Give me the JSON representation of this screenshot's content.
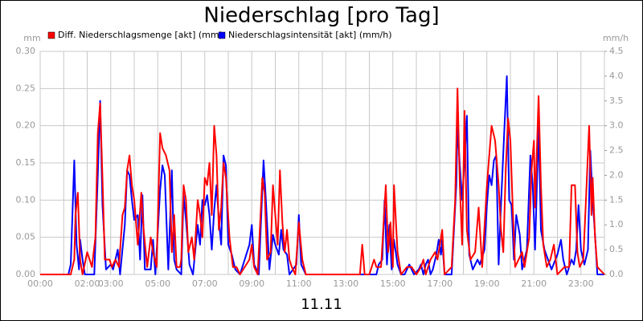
{
  "chart_data": {
    "type": "line",
    "title": "Niederschlag [pro Tag]",
    "x_label": "11.11",
    "y_label": "mm",
    "y2_label": "mm/h",
    "xlim": [
      0,
      24
    ],
    "xticks": [
      {
        "value": 0,
        "label": "00:00"
      },
      {
        "value": 1,
        "label": null
      },
      {
        "value": 2,
        "label": "02:00"
      },
      {
        "value": 3,
        "label": "03:00"
      },
      {
        "value": 4,
        "label": null
      },
      {
        "value": 5,
        "label": "05:00"
      },
      {
        "value": 6,
        "label": null
      },
      {
        "value": 7,
        "label": "07:00"
      },
      {
        "value": 8,
        "label": null
      },
      {
        "value": 9,
        "label": "09:00"
      },
      {
        "value": 10,
        "label": null
      },
      {
        "value": 11,
        "label": "11:00"
      },
      {
        "value": 12,
        "label": null
      },
      {
        "value": 13,
        "label": "13:00"
      },
      {
        "value": 14,
        "label": null
      },
      {
        "value": 15,
        "label": "15:00"
      },
      {
        "value": 16,
        "label": null
      },
      {
        "value": 17,
        "label": "17:00"
      },
      {
        "value": 18,
        "label": null
      },
      {
        "value": 19,
        "label": "19:00"
      },
      {
        "value": 20,
        "label": null
      },
      {
        "value": 21,
        "label": "21:00"
      },
      {
        "value": 22,
        "label": null
      },
      {
        "value": 23,
        "label": "23:00"
      },
      {
        "value": 24,
        "label": null
      }
    ],
    "ylim": [
      0,
      0.3
    ],
    "yticks": [
      {
        "value": 0,
        "label": "0.00"
      },
      {
        "value": 0.05,
        "label": "0.05"
      },
      {
        "value": 0.1,
        "label": "0.10"
      },
      {
        "value": 0.15,
        "label": "0.15"
      },
      {
        "value": 0.2,
        "label": "0.20"
      },
      {
        "value": 0.25,
        "label": "0.25"
      },
      {
        "value": 0.3,
        "label": "0.30"
      }
    ],
    "y2lim": [
      0,
      4.5
    ],
    "y2ticks": [
      {
        "value": 0,
        "label": "0.0"
      },
      0.5,
      {
        "value": 1,
        "label": "1.0"
      },
      1.5,
      {
        "value": 2,
        "label": "2.0"
      },
      2.5,
      {
        "value": 3,
        "label": "3.0"
      },
      3.5,
      {
        "value": 4,
        "label": "4.0"
      },
      4.5
    ],
    "grid": true,
    "legend": "top",
    "series": [
      {
        "name": "Diff. Niederschlagsmenge [akt] (mm)",
        "color": "#ff0000",
        "x": [
          0,
          1.3,
          1.45,
          1.5,
          1.6,
          1.7,
          1.8,
          2.0,
          2.2,
          2.35,
          2.45,
          2.55,
          2.65,
          2.75,
          2.95,
          3.05,
          3.2,
          3.35,
          3.5,
          3.6,
          3.7,
          3.8,
          3.9,
          4.0,
          4.15,
          4.3,
          4.4,
          4.55,
          4.7,
          4.8,
          4.95,
          5.1,
          5.2,
          5.35,
          5.5,
          5.6,
          5.7,
          5.8,
          5.95,
          6.0,
          6.1,
          6.2,
          6.3,
          6.45,
          6.55,
          6.7,
          6.8,
          6.9,
          7.0,
          7.1,
          7.2,
          7.3,
          7.4,
          7.5,
          7.6,
          7.7,
          7.8,
          7.9,
          8.05,
          8.2,
          8.35,
          8.5,
          8.9,
          9.0,
          9.1,
          9.25,
          9.45,
          9.55,
          9.65,
          9.8,
          9.9,
          10.0,
          10.1,
          10.2,
          10.3,
          10.4,
          10.5,
          10.6,
          10.7,
          10.85,
          11.0,
          11.15,
          11.3,
          13.6,
          13.7,
          13.8,
          14.0,
          14.2,
          14.3,
          14.5,
          14.7,
          14.8,
          14.9,
          15.0,
          15.05,
          15.2,
          15.35,
          15.6,
          15.8,
          16.0,
          16.2,
          16.3,
          16.4,
          16.6,
          16.8,
          16.9,
          17.0,
          17.1,
          17.2,
          17.5,
          17.65,
          17.75,
          17.85,
          17.95,
          18.05,
          18.15,
          18.3,
          18.5,
          18.65,
          18.8,
          19.0,
          19.2,
          19.35,
          19.5,
          19.6,
          19.7,
          19.8,
          19.9,
          20.0,
          20.1,
          20.2,
          20.35,
          20.5,
          20.6,
          20.8,
          20.9,
          21.0,
          21.05,
          21.2,
          21.3,
          21.4,
          21.55,
          21.7,
          21.85,
          22.0,
          22.3,
          22.5,
          22.6,
          22.75,
          22.85,
          22.95,
          23.1,
          23.2,
          23.35,
          23.45,
          23.5,
          23.6,
          23.7,
          24
        ],
        "values": [
          0,
          0,
          0.02,
          0.08,
          0.11,
          0.02,
          0,
          0.03,
          0.01,
          0.05,
          0.19,
          0.23,
          0.13,
          0.02,
          0.02,
          0.01,
          0.02,
          0.01,
          0.08,
          0.09,
          0.14,
          0.16,
          0.12,
          0.1,
          0.04,
          0.11,
          0.06,
          0.01,
          0.05,
          0.03,
          0.01,
          0.19,
          0.17,
          0.16,
          0.14,
          0.03,
          0.08,
          0.01,
          0.01,
          0.02,
          0.12,
          0.1,
          0.03,
          0.05,
          0.02,
          0.1,
          0.08,
          0.05,
          0.13,
          0.12,
          0.15,
          0.08,
          0.2,
          0.16,
          0.06,
          0.09,
          0.15,
          0.13,
          0.05,
          0.01,
          0.01,
          0,
          0.02,
          0.04,
          0.01,
          0,
          0.13,
          0.11,
          0.02,
          0.03,
          0.12,
          0.08,
          0.04,
          0.14,
          0.07,
          0.03,
          0.06,
          0.02,
          0.01,
          0,
          0.07,
          0.02,
          0,
          0,
          0.04,
          0,
          0,
          0.02,
          0.01,
          0.01,
          0.12,
          0.03,
          0.07,
          0.01,
          0.12,
          0.03,
          0,
          0.01,
          0.01,
          0,
          0.01,
          0.02,
          0,
          0.02,
          0.03,
          0.02,
          0.04,
          0.06,
          0,
          0.01,
          0.1,
          0.25,
          0.12,
          0.04,
          0.22,
          0.06,
          0.02,
          0.03,
          0.09,
          0.01,
          0.12,
          0.2,
          0.18,
          0.12,
          0.06,
          0.03,
          0.14,
          0.21,
          0.18,
          0.09,
          0.01,
          0.02,
          0.03,
          0.01,
          0.05,
          0.14,
          0.18,
          0.09,
          0.24,
          0.12,
          0.04,
          0.01,
          0.02,
          0.04,
          0,
          0.01,
          0.01,
          0.12,
          0.12,
          0.03,
          0.01,
          0.02,
          0.09,
          0.2,
          0.08,
          0.13,
          0.05,
          0.01,
          0
        ]
      },
      {
        "name": "Niederschlagsintensität [akt] (mm/h)",
        "color": "#0000ff",
        "axis": "y2",
        "x": [
          0,
          1.2,
          1.3,
          1.45,
          1.55,
          1.65,
          1.7,
          1.8,
          1.9,
          2.3,
          2.45,
          2.55,
          2.65,
          2.8,
          3.0,
          3.1,
          3.2,
          3.3,
          3.4,
          3.6,
          3.7,
          3.8,
          3.9,
          4.0,
          4.15,
          4.25,
          4.35,
          4.45,
          4.7,
          4.8,
          4.9,
          5.1,
          5.2,
          5.3,
          5.45,
          5.6,
          5.7,
          5.8,
          6.0,
          6.1,
          6.2,
          6.35,
          6.5,
          6.7,
          6.8,
          6.9,
          7.0,
          7.1,
          7.2,
          7.3,
          7.4,
          7.5,
          7.6,
          7.7,
          7.8,
          7.9,
          8.0,
          8.15,
          8.3,
          8.5,
          8.9,
          9.0,
          9.1,
          9.3,
          9.5,
          9.6,
          9.75,
          9.9,
          10.0,
          10.15,
          10.25,
          10.35,
          10.5,
          10.6,
          10.9,
          11.0,
          11.1,
          11.3,
          14.3,
          14.4,
          14.55,
          14.65,
          14.75,
          14.85,
          14.95,
          15.05,
          15.2,
          15.35,
          15.5,
          15.7,
          15.8,
          15.9,
          16.1,
          16.2,
          16.3,
          16.4,
          16.5,
          16.6,
          16.7,
          16.85,
          16.95,
          17.05,
          17.1,
          17.2,
          17.5,
          17.7,
          17.75,
          17.85,
          17.95,
          18.05,
          18.15,
          18.25,
          18.4,
          18.6,
          18.7,
          18.9,
          19.0,
          19.1,
          19.2,
          19.3,
          19.4,
          19.5,
          19.6,
          19.75,
          19.85,
          19.95,
          20.05,
          20.15,
          20.25,
          20.4,
          20.5,
          20.7,
          20.85,
          20.95,
          21.05,
          21.2,
          21.3,
          21.45,
          21.6,
          21.75,
          22.0,
          22.15,
          22.25,
          22.4,
          22.6,
          22.7,
          22.8,
          22.9,
          23.0,
          23.15,
          23.3,
          23.4,
          23.5,
          23.6,
          23.7,
          24
        ],
        "values": [
          0,
          0,
          0.2,
          2.3,
          0.6,
          0.1,
          0.7,
          0.3,
          0,
          0,
          2.0,
          3.5,
          1.4,
          0.1,
          0.2,
          0.1,
          0.3,
          0.5,
          0,
          1.0,
          2.1,
          2.0,
          1.5,
          1.1,
          1.2,
          0.3,
          1.6,
          0.1,
          0.1,
          0.7,
          0,
          1.7,
          2.2,
          2.0,
          0.1,
          2.1,
          0.3,
          0.1,
          0,
          1.6,
          1.1,
          0.2,
          0,
          1.0,
          0.6,
          1.5,
          1.4,
          1.6,
          1.2,
          0.5,
          1.3,
          1.8,
          1.1,
          0.6,
          2.4,
          2.2,
          0.6,
          0.4,
          0.1,
          0,
          0.6,
          1.0,
          0.2,
          0,
          2.3,
          1.5,
          0.1,
          0.8,
          0.6,
          0.4,
          0.9,
          0.5,
          0.4,
          0,
          0.2,
          1.2,
          0.2,
          0,
          0,
          0.2,
          0.3,
          1.5,
          0.2,
          1.0,
          0.1,
          0.7,
          0.2,
          0,
          0,
          0.2,
          0.1,
          0,
          0.1,
          0.2,
          0,
          0.2,
          0.3,
          0,
          0.1,
          0.4,
          0.7,
          0.4,
          0.7,
          0,
          0,
          1.8,
          3.0,
          2.2,
          1.5,
          2.3,
          3.2,
          0.4,
          0.1,
          0.3,
          0.2,
          0.5,
          1.4,
          2.0,
          1.8,
          2.3,
          2.4,
          0.2,
          1.4,
          3.0,
          4.0,
          1.5,
          1.4,
          0.3,
          1.2,
          0.8,
          0.1,
          0.5,
          2.4,
          1.8,
          0.5,
          3.0,
          0.9,
          0.5,
          0.3,
          0.1,
          0.4,
          0.7,
          0.3,
          0,
          0.3,
          0.2,
          0.5,
          1.4,
          0.5,
          0.2,
          0.5,
          2.5,
          1.5,
          0.8,
          0,
          0
        ]
      }
    ]
  }
}
